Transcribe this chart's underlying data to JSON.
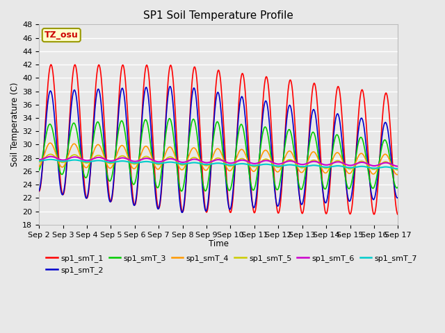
{
  "title": "SP1 Soil Temperature Profile",
  "xlabel": "Time",
  "ylabel": "Soil Temperature (C)",
  "annotation": "TZ_osu",
  "annotation_color": "#cc0000",
  "annotation_bg": "#ffffcc",
  "annotation_border": "#999900",
  "ylim": [
    18,
    48
  ],
  "series_colors": {
    "sp1_smT_1": "#ff0000",
    "sp1_smT_2": "#0000cc",
    "sp1_smT_3": "#00cc00",
    "sp1_smT_4": "#ff9900",
    "sp1_smT_5": "#cccc00",
    "sp1_smT_6": "#cc00cc",
    "sp1_smT_7": "#00cccc"
  },
  "background_color": "#e8e8e8",
  "grid_color": "#ffffff",
  "x_tick_labels": [
    "Sep 2",
    "Sep 3",
    "Sep 4",
    "Sep 5",
    "Sep 6",
    "Sep 7",
    "Sep 8",
    "Sep 9",
    "Sep 10",
    "Sep 11",
    "Sep 12",
    "Sep 13",
    "Sep 14",
    "Sep 15",
    "Sep 16",
    "Sep 17"
  ]
}
